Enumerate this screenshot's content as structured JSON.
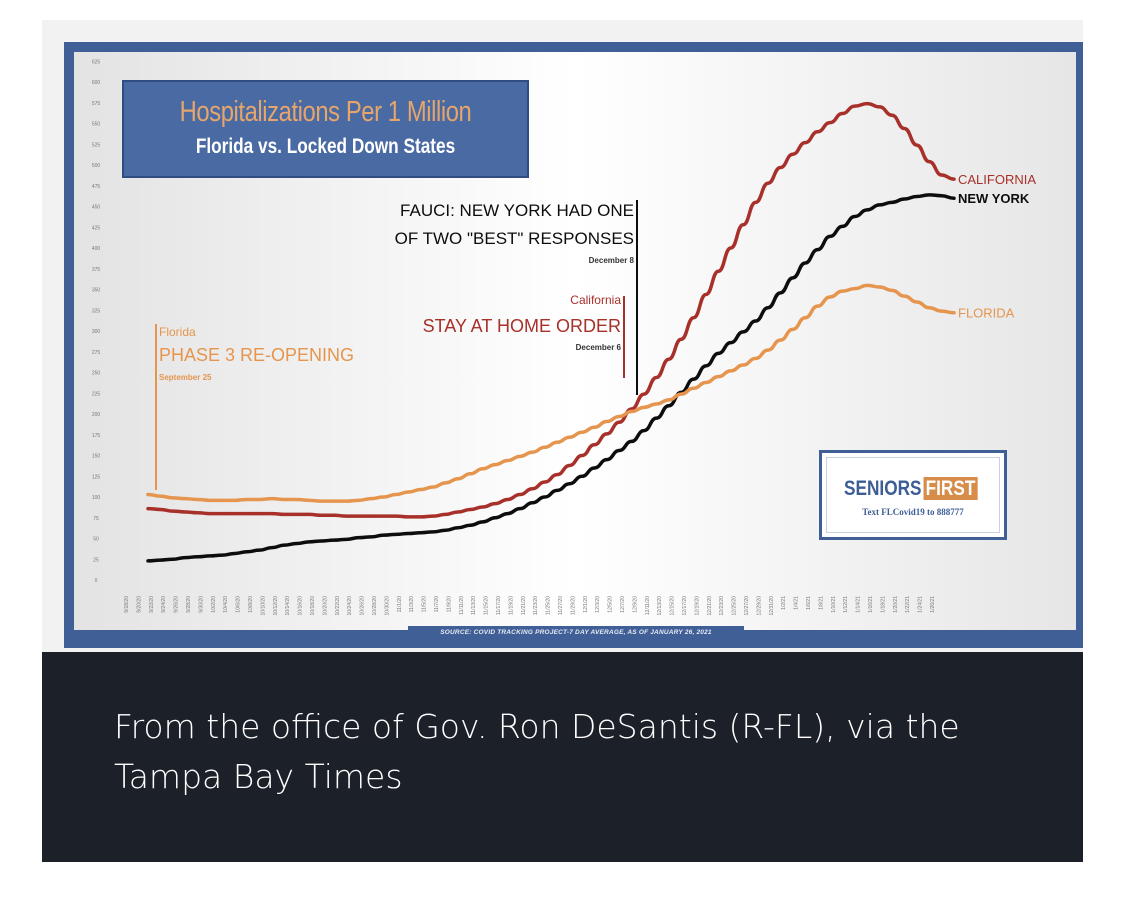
{
  "caption": "From the office of Gov. Ron DeSantis (R-FL), via the Tampa Bay Times",
  "logo": {
    "word1": "SENIORS",
    "word2": "FIRST",
    "subtext": "Text FLCovid19 to 888777"
  },
  "chart_data": {
    "type": "line",
    "title": "Hospitalizations Per 1 Million",
    "subtitle": "Florida vs. Locked Down States",
    "source": "SOURCE: COVID TRACKING PROJECT-7 DAY AVERAGE, AS OF JANUARY 26, 2021",
    "xlabel": "",
    "ylabel": "",
    "ylim": [
      0,
      625
    ],
    "yticks": [
      0,
      25,
      50,
      75,
      100,
      125,
      150,
      175,
      200,
      225,
      250,
      275,
      300,
      325,
      350,
      375,
      400,
      425,
      450,
      475,
      500,
      525,
      550,
      575,
      600,
      625
    ],
    "grid": false,
    "x": [
      "9/18/20",
      "9/20/20",
      "9/22/20",
      "9/24/20",
      "9/26/20",
      "9/28/20",
      "9/30/20",
      "10/2/20",
      "10/4/20",
      "10/6/20",
      "10/8/20",
      "10/10/20",
      "10/12/20",
      "10/14/20",
      "10/16/20",
      "10/18/20",
      "10/20/20",
      "10/22/20",
      "10/24/20",
      "10/26/20",
      "10/28/20",
      "10/30/20",
      "11/1/20",
      "11/3/20",
      "11/5/20",
      "11/7/20",
      "11/9/20",
      "11/11/20",
      "11/13/20",
      "11/15/20",
      "11/17/20",
      "11/19/20",
      "11/21/20",
      "11/23/20",
      "11/25/20",
      "11/27/20",
      "11/29/20",
      "12/1/20",
      "12/3/20",
      "12/5/20",
      "12/7/20",
      "12/9/20",
      "12/11/20",
      "12/13/20",
      "12/15/20",
      "12/17/20",
      "12/19/20",
      "12/21/20",
      "12/23/20",
      "12/25/20",
      "12/27/20",
      "12/29/20",
      "12/31/20",
      "1/2/21",
      "1/4/21",
      "1/6/21",
      "1/8/21",
      "1/10/21",
      "1/12/21",
      "1/14/21",
      "1/16/21",
      "1/18/21",
      "1/20/21",
      "1/22/21",
      "1/24/21",
      "1/26/21"
    ],
    "series": [
      {
        "name": "CALIFORNIA",
        "color": "#a8302a",
        "values": [
          86,
          85,
          83,
          82,
          81,
          80,
          80,
          80,
          80,
          80,
          80,
          79,
          79,
          79,
          78,
          78,
          77,
          77,
          77,
          77,
          77,
          76,
          76,
          77,
          79,
          82,
          85,
          88,
          92,
          97,
          103,
          110,
          118,
          127,
          138,
          150,
          163,
          176,
          190,
          206,
          224,
          244,
          266,
          290,
          316,
          344,
          372,
          400,
          428,
          455,
          478,
          497,
          513,
          527,
          540,
          551,
          562,
          571,
          574,
          570,
          560,
          544,
          524,
          504,
          488,
          483
        ]
      },
      {
        "name": "NEW YORK",
        "color": "#0d0d0d",
        "values": [
          23,
          24,
          25,
          27,
          28,
          29,
          30,
          32,
          34,
          36,
          39,
          42,
          44,
          46,
          47,
          48,
          49,
          51,
          52,
          54,
          55,
          56,
          57,
          58,
          60,
          63,
          66,
          70,
          75,
          80,
          86,
          93,
          100,
          108,
          116,
          125,
          135,
          145,
          156,
          167,
          180,
          195,
          210,
          226,
          242,
          258,
          273,
          286,
          299,
          312,
          328,
          346,
          364,
          382,
          398,
          414,
          426,
          438,
          446,
          452,
          455,
          459,
          462,
          464,
          463,
          460
        ]
      },
      {
        "name": "FLORIDA",
        "color": "#e5954e",
        "values": [
          103,
          101,
          99,
          98,
          97,
          96,
          96,
          96,
          97,
          97,
          98,
          97,
          97,
          96,
          95,
          95,
          95,
          96,
          98,
          100,
          103,
          106,
          109,
          112,
          117,
          122,
          128,
          134,
          139,
          144,
          149,
          154,
          160,
          166,
          172,
          178,
          184,
          191,
          197,
          203,
          208,
          212,
          217,
          224,
          231,
          238,
          245,
          252,
          259,
          267,
          277,
          289,
          302,
          316,
          330,
          341,
          348,
          351,
          355,
          353,
          349,
          342,
          335,
          328,
          324,
          322
        ]
      }
    ],
    "annotations": [
      {
        "name": "florida-reopening",
        "line1": "Florida",
        "line2": "PHASE 3 RE-OPENING",
        "line3": "September 25",
        "color": "#e5954e"
      },
      {
        "name": "california-order",
        "line1": "California",
        "line2": "STAY AT HOME ORDER",
        "line3": "December 6",
        "color": "#a8302a"
      },
      {
        "name": "fauci-quote",
        "line1": "FAUCI: NEW YORK HAD ONE",
        "line2": "OF TWO \"BEST\" RESPONSES",
        "line3": "December 8",
        "color": "#0d0d0d"
      }
    ],
    "legend": "line-end labels"
  }
}
